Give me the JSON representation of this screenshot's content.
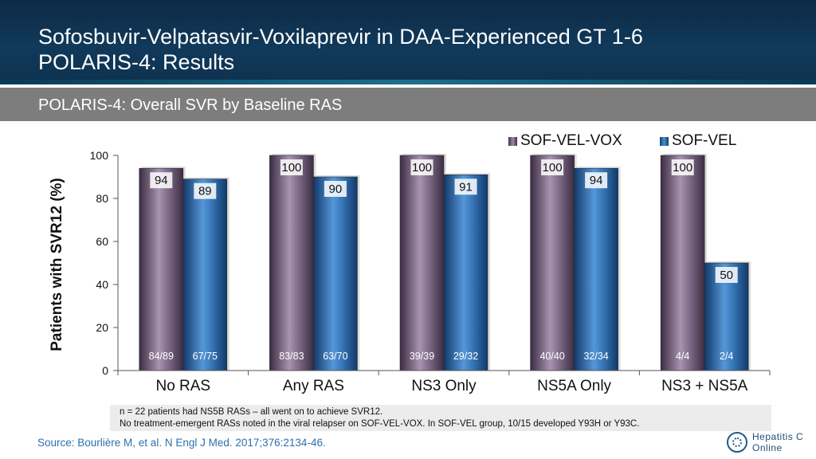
{
  "header": {
    "title_line1": "Sofosbuvir-Velpatasvir-Voxilaprevir in DAA-Experienced GT 1-6",
    "title_line2": "POLARIS-4: Results"
  },
  "subheader": {
    "title": "POLARIS-4: Overall SVR by Baseline RAS"
  },
  "colors": {
    "header_bg": "#0e3250",
    "subbar_bg": "#7d7d7d",
    "series_vox": "#8a7693",
    "series_vel": "#3d7fc1",
    "source_text": "#2f6fb0"
  },
  "chart_data": {
    "type": "bar",
    "categories": [
      "No RAS",
      "Any RAS",
      "NS3 Only",
      "NS5A Only",
      "NS3 + NS5A"
    ],
    "series": [
      {
        "name": "SOF-VEL-VOX",
        "values": [
          94,
          100,
          100,
          100,
          100
        ],
        "counts": [
          "84/89",
          "83/83",
          "39/39",
          "40/40",
          "4/4"
        ]
      },
      {
        "name": "SOF-VEL",
        "values": [
          89,
          90,
          91,
          94,
          50
        ],
        "counts": [
          "67/75",
          "63/70",
          "29/32",
          "32/34",
          "2/4"
        ]
      }
    ],
    "ylabel": "Patients with SVR12 (%)",
    "xlabel": "",
    "ylim": [
      0,
      100
    ],
    "yticks": [
      0,
      20,
      40,
      60,
      80,
      100
    ],
    "grid": false,
    "legend": "top-right"
  },
  "footnote": {
    "line1": "n = 22 patients had NS5B RASs – all went on to achieve SVR12.",
    "line2": "No treatment-emergent RASs noted in the viral relapser on SOF-VEL-VOX. In SOF-VEL group, 10/15 developed Y93H or Y93C."
  },
  "source": "Source: Bourlière M, et al. N Engl J Med. 2017;376:2134-46.",
  "logo": {
    "line1": "Hepatitis C",
    "line2": "Online"
  }
}
